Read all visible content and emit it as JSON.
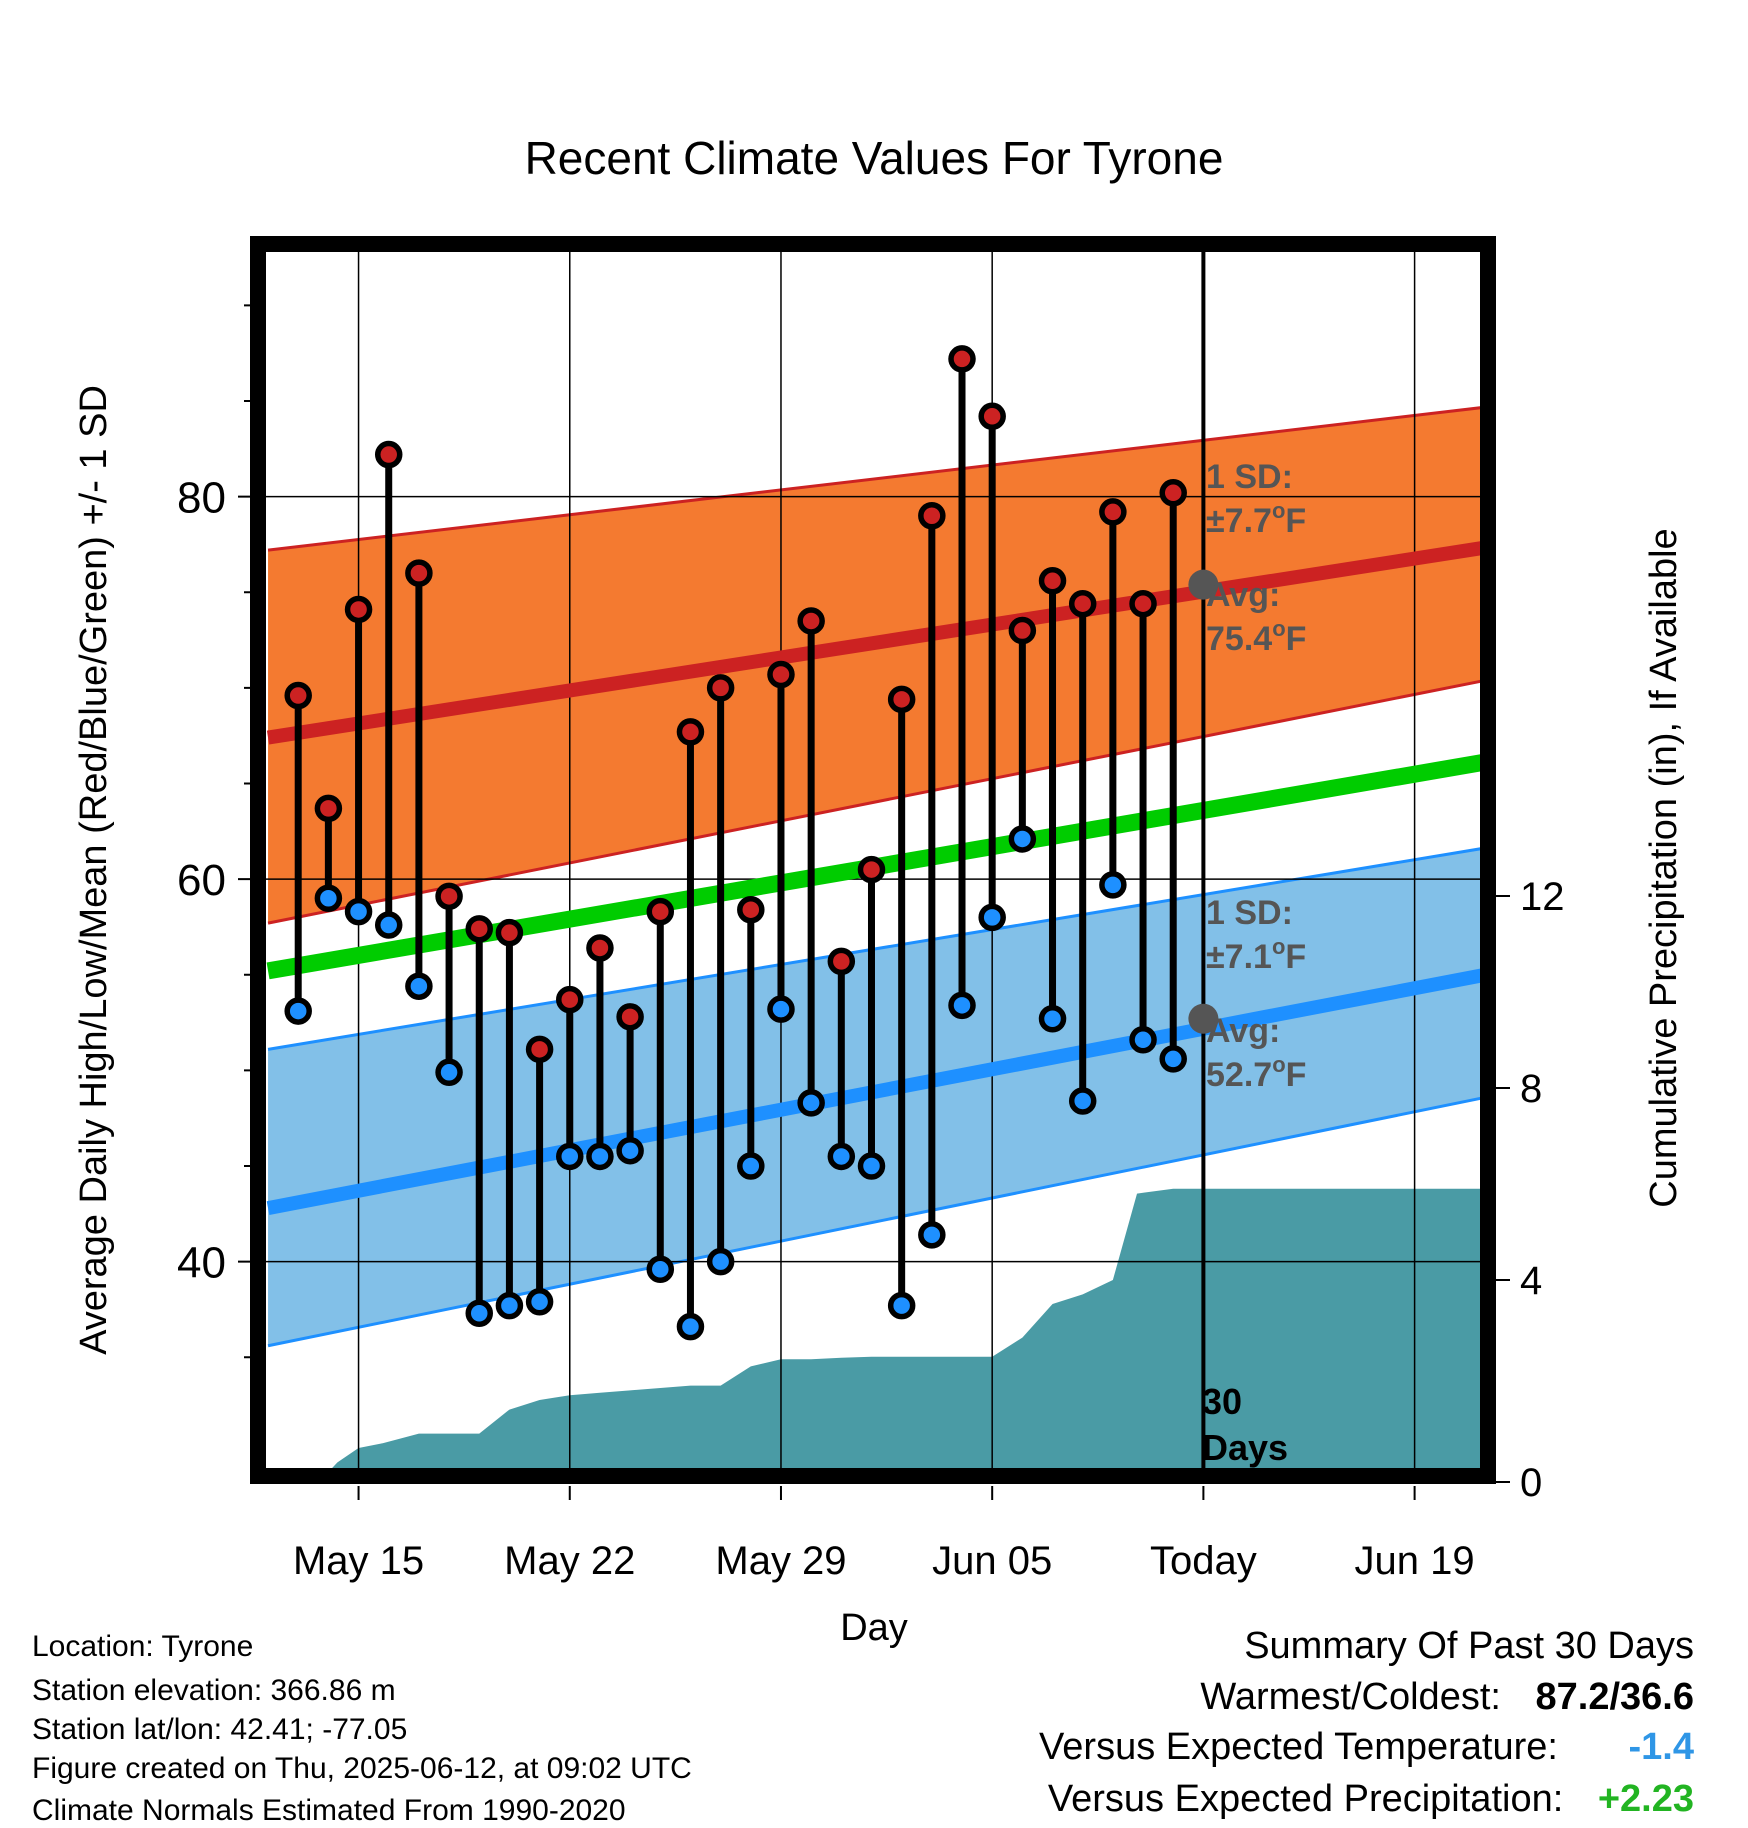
{
  "chart_data": {
    "type": "line",
    "title": "Recent Climate Values For Tyrone",
    "xlabel": "Day",
    "ylabel": "Average Daily High/Low/Mean (Red/Blue/Green) +/- 1 SD",
    "y2label": "Cumulative Precipitation (in), If Available",
    "x_ticks": [
      "May 15",
      "May 22",
      "May 29",
      "Jun 05",
      "Today",
      "Jun 19"
    ],
    "y_ticks": [
      "40",
      "60",
      "80"
    ],
    "y2_ticks": [
      "0",
      "4",
      "8",
      "12"
    ],
    "ylim": [
      29,
      93
    ],
    "y2lim": [
      0,
      25.5
    ],
    "xlim_days_from_may12": [
      -0.2,
      40.3
    ],
    "today_day_index": 31,
    "observations": {
      "days": [
        1,
        2,
        3,
        4,
        5,
        6,
        7,
        8,
        9,
        10,
        11,
        12,
        13,
        14,
        15,
        16,
        17,
        18,
        19,
        20,
        21,
        22,
        23,
        24,
        25,
        26,
        27,
        28,
        29,
        30
      ],
      "highs": [
        69.6,
        63.7,
        74.1,
        82.2,
        76.0,
        59.1,
        57.4,
        57.2,
        51.1,
        53.7,
        56.4,
        52.8,
        58.3,
        67.7,
        70.0,
        58.4,
        70.7,
        73.5,
        55.7,
        60.5,
        69.4,
        79.0,
        87.2,
        84.2,
        73.0,
        75.6,
        74.4,
        79.2,
        74.4,
        80.2
      ],
      "lows": [
        53.1,
        59.0,
        58.3,
        57.6,
        54.4,
        49.9,
        37.3,
        37.7,
        37.9,
        45.5,
        45.5,
        45.8,
        39.6,
        36.6,
        40.0,
        45.0,
        53.2,
        48.3,
        45.5,
        45.0,
        37.7,
        41.4,
        53.4,
        58.0,
        62.1,
        52.7,
        48.4,
        59.7,
        51.6,
        50.6
      ]
    },
    "normals": {
      "days": [
        0,
        41
      ],
      "high_mean": [
        67.4,
        77.5
      ],
      "high_upper": [
        77.2,
        84.8
      ],
      "high_lower": [
        57.7,
        70.6
      ],
      "mean": [
        55.2,
        66.3
      ],
      "low_mean": [
        42.8,
        55.2
      ],
      "low_upper": [
        51.1,
        61.8
      ],
      "low_lower": [
        35.6,
        48.8
      ]
    },
    "precipitation": {
      "days": [
        2,
        2.3,
        3,
        3.8,
        5,
        6,
        7,
        8,
        9,
        10,
        11,
        12,
        13,
        14,
        15,
        16,
        17,
        18,
        19,
        20,
        21,
        22,
        23,
        24,
        25,
        26,
        27,
        28,
        28.8,
        30,
        31,
        40.3
      ],
      "cumulative": [
        0,
        0.2,
        0.5,
        0.6,
        0.8,
        0.8,
        0.8,
        1.3,
        1.5,
        1.6,
        1.65,
        1.7,
        1.75,
        1.8,
        1.8,
        2.2,
        2.35,
        2.35,
        2.38,
        2.4,
        2.4,
        2.4,
        2.4,
        2.4,
        2.8,
        3.5,
        3.7,
        4.0,
        5.8,
        5.9,
        5.9,
        5.9
      ]
    },
    "annotations": {
      "high_sd_label": "1 SD:",
      "high_sd_value": "±7.7",
      "high_avg_label": "Avg:",
      "high_avg_value": "75.4",
      "low_sd_label": "1 SD:",
      "low_sd_value": "±7.1",
      "low_avg_label": "Avg:",
      "low_avg_value": "52.7",
      "degree_unit": "o",
      "temp_unit": "F",
      "today_avg_high": 75.4,
      "today_avg_low": 52.7,
      "window_label_1": "30",
      "window_label_2": "Days"
    },
    "colors": {
      "high": "#cc2222",
      "high_band": "#f47a30",
      "low": "#1e90ff",
      "low_band": "#82c0e8",
      "mean": "#00cc00",
      "precip": "#4a9ba5",
      "annotation": "#555555"
    },
    "grid": true
  },
  "info": {
    "location": "Location: Tyrone",
    "elevation": "Station elevation: 366.86 m",
    "latlon": "Station lat/lon: 42.41; -77.05",
    "created": "Figure created on Thu, 2025-06-12, at 09:02 UTC",
    "normals": "Climate Normals Estimated From 1990-2020"
  },
  "summary": {
    "title": "Summary Of Past 30 Days",
    "warmest_label": "Warmest/Coldest:",
    "warmest_value": "87.2/36.6",
    "temp_label": "Versus Expected Temperature:",
    "temp_value": "-1.4",
    "temp_color": "#2f96e6",
    "precip_label": "Versus Expected Precipitation:",
    "precip_value": "+2.23",
    "precip_color": "#22b422"
  }
}
